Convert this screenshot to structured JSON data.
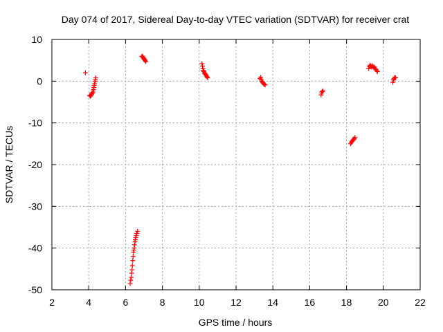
{
  "chart_data": {
    "type": "scatter",
    "title": "Day 074 of 2017, Sidereal Day-to-day VTEC variation (SDTVAR) for receiver crat",
    "xlabel": "GPS time / hours",
    "ylabel": "SDTVAR / TECUs",
    "xlim": [
      2,
      22
    ],
    "ylim": [
      -50,
      10
    ],
    "xticks": [
      2,
      4,
      6,
      8,
      10,
      12,
      14,
      16,
      18,
      20,
      22
    ],
    "yticks": [
      -50,
      -40,
      -30,
      -20,
      -10,
      0,
      10
    ],
    "xtick_labels": [
      "2",
      "4",
      "6",
      "8",
      "10",
      "12",
      "14",
      "16",
      "18",
      "20",
      "22"
    ],
    "ytick_labels": [
      "-50",
      "-40",
      "-30",
      "-20",
      "-10",
      "0",
      "10"
    ],
    "grid": true,
    "marker": "+",
    "color": "#ff0000",
    "series": [
      {
        "name": "SDTVAR",
        "points": [
          [
            3.82,
            2.0
          ],
          [
            4.05,
            -3.4
          ],
          [
            4.08,
            -3.6
          ],
          [
            4.12,
            -3.5
          ],
          [
            4.15,
            -3.2
          ],
          [
            4.18,
            -3.0
          ],
          [
            4.21,
            -2.7
          ],
          [
            4.24,
            -2.4
          ],
          [
            4.26,
            -2.0
          ],
          [
            4.28,
            -1.5
          ],
          [
            4.3,
            -1.0
          ],
          [
            4.32,
            -0.6
          ],
          [
            4.34,
            -0.1
          ],
          [
            4.36,
            0.3
          ],
          [
            4.38,
            0.8
          ],
          [
            6.25,
            -48.5
          ],
          [
            6.28,
            -47.7
          ],
          [
            6.31,
            -47.0
          ],
          [
            6.33,
            -46.0
          ],
          [
            6.35,
            -45.2
          ],
          [
            6.37,
            -44.2
          ],
          [
            6.39,
            -43.0
          ],
          [
            6.41,
            -42.0
          ],
          [
            6.43,
            -41.0
          ],
          [
            6.45,
            -40.5
          ],
          [
            6.47,
            -40.0
          ],
          [
            6.49,
            -39.2
          ],
          [
            6.51,
            -38.5
          ],
          [
            6.53,
            -38.0
          ],
          [
            6.55,
            -37.5
          ],
          [
            6.58,
            -37.0
          ],
          [
            6.61,
            -36.5
          ],
          [
            6.65,
            -36.0
          ],
          [
            6.88,
            5.9
          ],
          [
            6.92,
            6.0
          ],
          [
            6.95,
            5.7
          ],
          [
            6.98,
            5.5
          ],
          [
            7.01,
            5.3
          ],
          [
            7.04,
            5.1
          ],
          [
            7.07,
            4.9
          ],
          [
            7.1,
            4.7
          ],
          [
            10.15,
            4.2
          ],
          [
            10.18,
            3.6
          ],
          [
            10.2,
            3.0
          ],
          [
            10.22,
            2.6
          ],
          [
            10.25,
            2.3
          ],
          [
            10.28,
            2.0
          ],
          [
            10.31,
            1.8
          ],
          [
            10.34,
            1.6
          ],
          [
            10.37,
            1.5
          ],
          [
            10.4,
            1.2
          ],
          [
            10.43,
            1.0
          ],
          [
            10.46,
            0.8
          ],
          [
            13.3,
            0.6
          ],
          [
            13.34,
            0.9
          ],
          [
            13.37,
            0.4
          ],
          [
            13.4,
            0.0
          ],
          [
            13.43,
            -0.2
          ],
          [
            13.46,
            -0.4
          ],
          [
            13.5,
            -0.6
          ],
          [
            13.54,
            -0.8
          ],
          [
            13.58,
            -0.9
          ],
          [
            16.62,
            -3.3
          ],
          [
            16.65,
            -2.8
          ],
          [
            16.68,
            -2.5
          ],
          [
            16.72,
            -2.3
          ],
          [
            18.22,
            -15.0
          ],
          [
            18.26,
            -14.7
          ],
          [
            18.3,
            -14.4
          ],
          [
            18.34,
            -14.2
          ],
          [
            18.38,
            -14.0
          ],
          [
            18.42,
            -13.8
          ],
          [
            18.46,
            -13.5
          ],
          [
            19.2,
            3.0
          ],
          [
            19.24,
            3.5
          ],
          [
            19.28,
            3.8
          ],
          [
            19.32,
            3.6
          ],
          [
            19.36,
            3.4
          ],
          [
            19.4,
            3.7
          ],
          [
            19.44,
            3.5
          ],
          [
            19.48,
            3.2
          ],
          [
            19.52,
            3.4
          ],
          [
            19.56,
            3.0
          ],
          [
            19.6,
            2.8
          ],
          [
            19.64,
            2.5
          ],
          [
            19.68,
            2.3
          ],
          [
            20.52,
            -0.3
          ],
          [
            20.55,
            0.3
          ],
          [
            20.58,
            0.6
          ],
          [
            20.62,
            0.9
          ],
          [
            20.66,
            0.8
          ]
        ]
      }
    ]
  }
}
